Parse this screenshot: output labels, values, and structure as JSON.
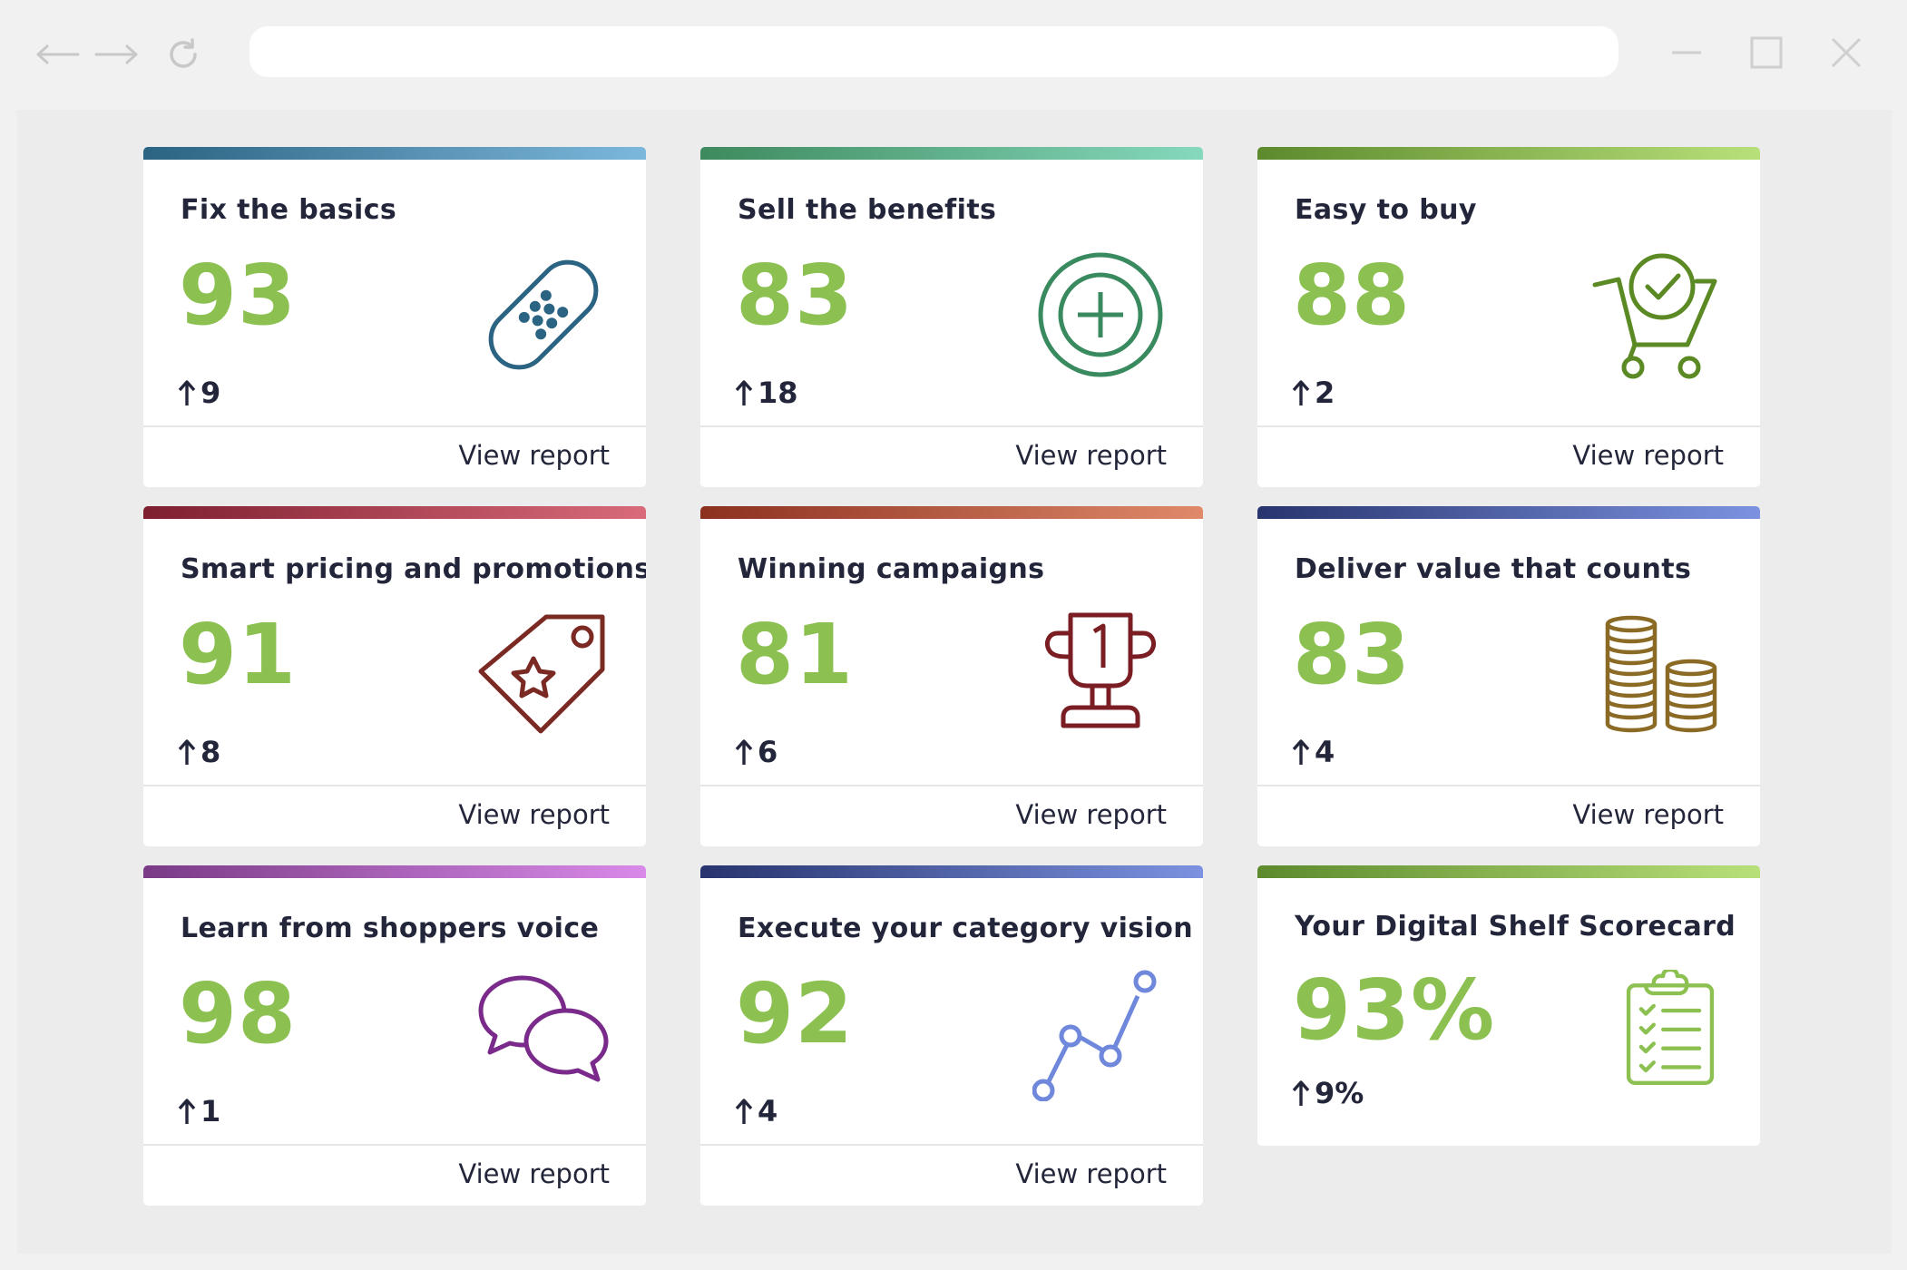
{
  "browser": {
    "url_value": "",
    "icons": [
      "back-arrow-icon",
      "forward-arrow-icon",
      "reload-icon",
      "minimize-icon",
      "maximize-icon",
      "close-icon"
    ]
  },
  "cards": [
    {
      "title": "Fix the basics",
      "score": "93",
      "delta": "9",
      "report_label": "View report",
      "icon": "bandage-icon",
      "gradient": [
        "#2b6382",
        "#7cb8dc"
      ],
      "icon_color": "#2b6382"
    },
    {
      "title": "Sell the benefits",
      "score": "83",
      "delta": "18",
      "report_label": "View report",
      "icon": "plus-circle-icon",
      "gradient": [
        "#3e8a5e",
        "#86d9bd"
      ],
      "icon_color": "#3a8a60"
    },
    {
      "title": "Easy to buy",
      "score": "88",
      "delta": "2",
      "report_label": "View report",
      "icon": "cart-check-icon",
      "gradient": [
        "#5c8a2c",
        "#b8e07a"
      ],
      "icon_color": "#5b8a24"
    },
    {
      "title": "Smart pricing and promotions",
      "score": "91",
      "delta": "8",
      "report_label": "View report",
      "icon": "price-tag-star-icon",
      "gradient": [
        "#7e1f30",
        "#d96b7a"
      ],
      "icon_color": "#7a2a22"
    },
    {
      "title": "Winning campaigns",
      "score": "81",
      "delta": "6",
      "report_label": "View report",
      "icon": "trophy-icon",
      "gradient": [
        "#8c3020",
        "#e08a6a"
      ],
      "icon_color": "#7a1e24"
    },
    {
      "title": "Deliver value that counts",
      "score": "83",
      "delta": "4",
      "report_label": "View report",
      "icon": "coin-stacks-icon",
      "gradient": [
        "#27346e",
        "#7c92e0"
      ],
      "icon_color": "#8a6a24"
    },
    {
      "title": "Learn from shoppers voice",
      "score": "98",
      "delta": "1",
      "report_label": "View report",
      "icon": "chat-bubbles-icon",
      "gradient": [
        "#7a3a86",
        "#d88ae8"
      ],
      "icon_color": "#7a2a8a"
    },
    {
      "title": "Execute your category vision",
      "score": "92",
      "delta": "4",
      "report_label": "View report",
      "icon": "line-chart-icon",
      "gradient": [
        "#27346e",
        "#7c92e0"
      ],
      "icon_color": "#7088dc"
    },
    {
      "title": "Your Digital Shelf Scorecard",
      "score": "93%",
      "delta": "9%",
      "report_label": "",
      "icon": "clipboard-checklist-icon",
      "gradient": [
        "#5c8a2c",
        "#b8e07a"
      ],
      "icon_color": "#8cc152"
    }
  ]
}
